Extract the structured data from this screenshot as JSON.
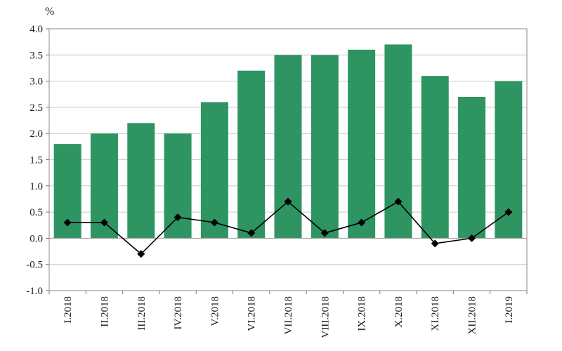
{
  "chart_data": {
    "type": "bar",
    "ylabel": "%",
    "ylim": [
      -1.0,
      4.0
    ],
    "ytick_labels": [
      "4.0",
      "3.5",
      "3.0",
      "2.5",
      "2.0",
      "1.5",
      "1.0",
      "0.5",
      "0.0",
      "-0.5",
      "-1.0"
    ],
    "categories": [
      "I.2018",
      "II.2018",
      "III.2018",
      "IV.2018",
      "V.2018",
      "VI.2018",
      "VII.2018",
      "VIII.2018",
      "IX.2018",
      "X.2018",
      "XI.2018",
      "XII.2018",
      "I.2019"
    ],
    "series": [
      {
        "type": "bar",
        "values": [
          1.8,
          2.0,
          2.2,
          2.0,
          2.6,
          3.2,
          3.5,
          3.5,
          3.6,
          3.7,
          3.1,
          2.7,
          3.0
        ],
        "color": "#2e9462"
      },
      {
        "type": "line",
        "marker": "diamond",
        "values": [
          0.3,
          0.3,
          -0.3,
          0.4,
          0.3,
          0.1,
          0.7,
          0.1,
          0.3,
          0.7,
          -0.1,
          0.0,
          0.5
        ],
        "color": "#000000"
      }
    ],
    "grid": true,
    "legend": "none"
  }
}
